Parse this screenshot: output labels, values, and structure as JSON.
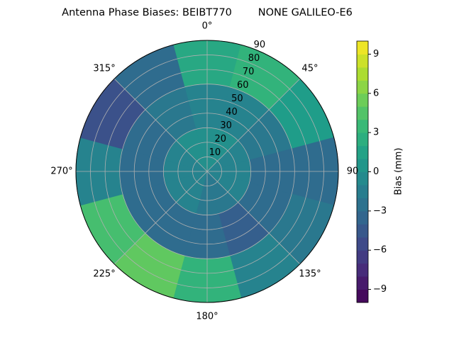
{
  "chart_data": {
    "type": "polar_contour",
    "title": "Antenna Phase Biases: BEIBT770        NONE GALILEO-E6",
    "theta": [
      0,
      30,
      60,
      90,
      120,
      150,
      180,
      210,
      240,
      270,
      300,
      330
    ],
    "r": [
      15,
      45,
      75
    ],
    "values": [
      [
        0,
        0,
        -1,
        -1,
        -1,
        -2,
        -2,
        -1,
        -1,
        -1,
        -1,
        0
      ],
      [
        -1,
        -1,
        -2,
        -3,
        -3,
        -4,
        -3,
        -3,
        -3,
        -3,
        -3,
        -2
      ],
      [
        2,
        3,
        1,
        -3,
        -2,
        -1,
        3,
        5,
        4,
        -1,
        -5,
        -3
      ]
    ],
    "rlim": [
      0,
      90
    ],
    "rticks": [
      10,
      20,
      30,
      40,
      50,
      60,
      70,
      80,
      90
    ],
    "thetaticks": [
      {
        "value": 0,
        "label": "0°"
      },
      {
        "value": 45,
        "label": "45°"
      },
      {
        "value": 90,
        "label": "90"
      },
      {
        "value": 135,
        "label": "135°"
      },
      {
        "value": 180,
        "label": "180°"
      },
      {
        "value": 225,
        "label": "225°"
      },
      {
        "value": 270,
        "label": "270°"
      },
      {
        "value": 315,
        "label": "315°"
      }
    ],
    "colorbar_label": "Bias (mm)",
    "clim": [
      -10,
      10
    ],
    "cticks": [
      {
        "value": -9,
        "label": "−9"
      },
      {
        "value": -6,
        "label": "−6"
      },
      {
        "value": -3,
        "label": "−3"
      },
      0,
      3,
      6,
      9
    ],
    "colormap": "viridis",
    "grid": true
  }
}
